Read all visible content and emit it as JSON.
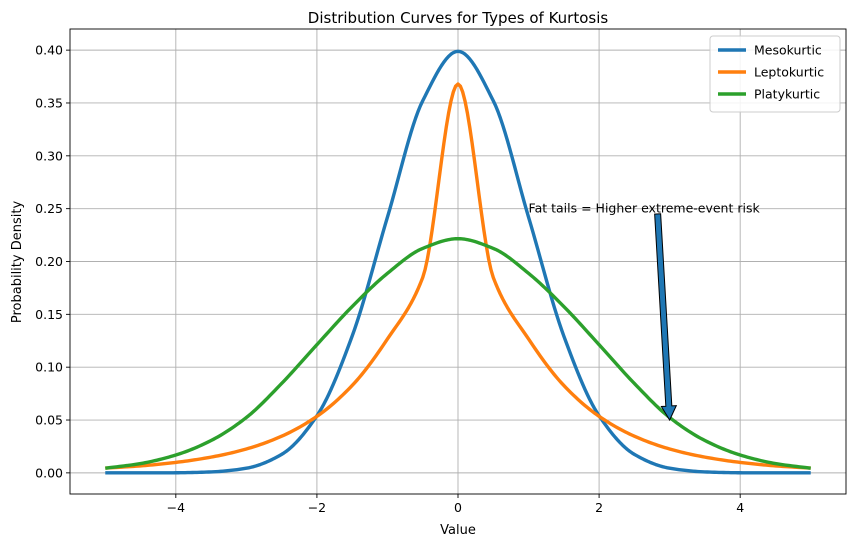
{
  "chart_data": {
    "type": "line",
    "title": "Distribution Curves for Types of Kurtosis",
    "xlabel": "Value",
    "ylabel": "Probability Density",
    "xlim": [
      -5.5,
      5.5
    ],
    "ylim": [
      -0.02,
      0.42
    ],
    "x_ticks": [
      -4,
      -2,
      0,
      2,
      4
    ],
    "x_tick_labels": [
      "−4",
      "−2",
      "0",
      "2",
      "4"
    ],
    "y_ticks": [
      0.0,
      0.05,
      0.1,
      0.15,
      0.2,
      0.25,
      0.3,
      0.35,
      0.4
    ],
    "y_tick_labels": [
      "0.00",
      "0.05",
      "0.10",
      "0.15",
      "0.20",
      "0.25",
      "0.30",
      "0.35",
      "0.40"
    ],
    "grid": true,
    "legend_position": "top-right",
    "x": [
      -5,
      -4.5,
      -4,
      -3.5,
      -3,
      -2.5,
      -2,
      -1.5,
      -1,
      -0.5,
      0,
      0.5,
      1,
      1.5,
      2,
      2.5,
      3,
      3.5,
      4,
      4.5,
      5
    ],
    "series": [
      {
        "name": "Mesokurtic",
        "color": "#1f77b4",
        "values": [
          0.0,
          0.0,
          0.0001,
          0.0009,
          0.0044,
          0.0175,
          0.054,
          0.1295,
          0.242,
          0.3521,
          0.3989,
          0.3521,
          0.242,
          0.1295,
          0.054,
          0.0175,
          0.0044,
          0.0009,
          0.0001,
          0.0,
          0.0
        ]
      },
      {
        "name": "Leptokurtic",
        "color": "#ff7f0e",
        "values": [
          0.0045,
          0.0066,
          0.0099,
          0.0149,
          0.0226,
          0.0347,
          0.0535,
          0.0827,
          0.1267,
          0.1849,
          0.3679,
          0.1849,
          0.1267,
          0.0827,
          0.0535,
          0.0347,
          0.0226,
          0.0149,
          0.0099,
          0.0066,
          0.0045
        ]
      },
      {
        "name": "Platykurtic",
        "color": "#2ca02c",
        "values": [
          0.0044,
          0.0088,
          0.0169,
          0.0306,
          0.0524,
          0.0846,
          0.1213,
          0.1574,
          0.1888,
          0.2124,
          0.2216,
          0.2124,
          0.1888,
          0.1574,
          0.1213,
          0.0846,
          0.0524,
          0.0306,
          0.0169,
          0.0088,
          0.0044
        ]
      }
    ],
    "annotation": {
      "text": "Fat tails = Higher extreme-event risk",
      "text_x": 1.0,
      "text_y": 0.25,
      "arrow_to_x": 3.0,
      "arrow_to_y": 0.05,
      "color": "#1f77b4"
    }
  }
}
